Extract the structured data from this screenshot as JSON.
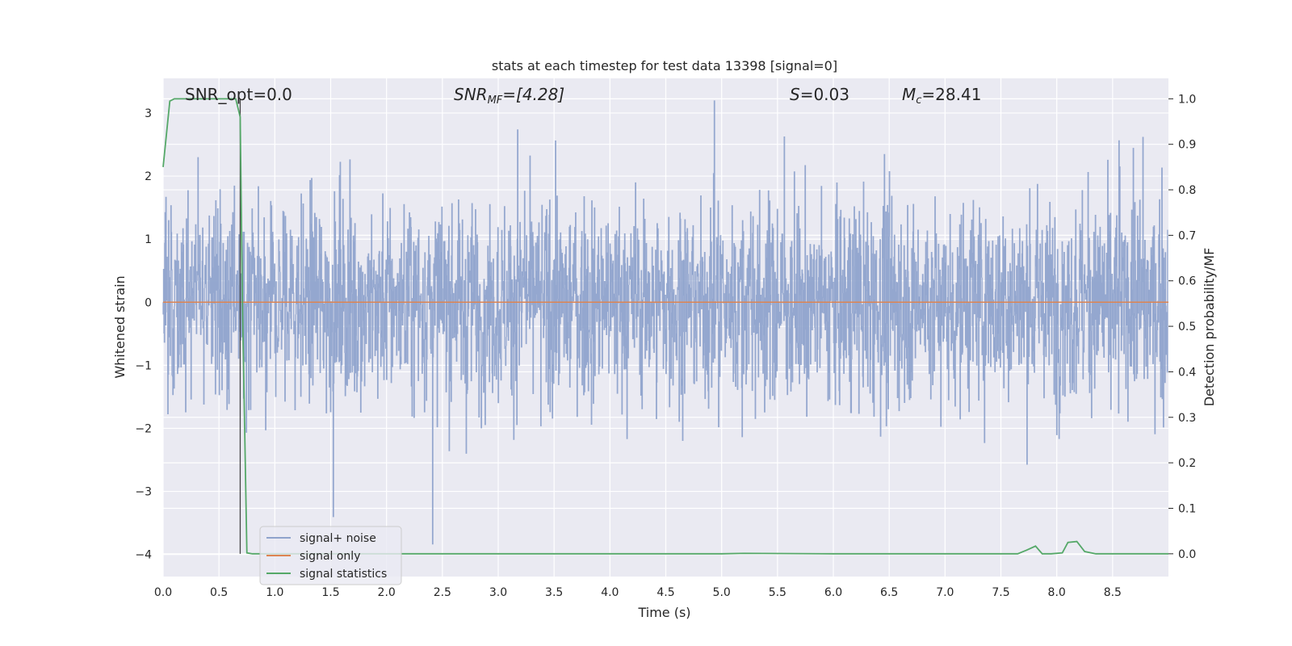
{
  "chart_data": {
    "type": "line",
    "title": "stats at each timestep for test data 13398 [signal=0]",
    "xlabel": "Time (s)",
    "ylabel": "Whitened strain",
    "y2label": "Detection probability/MF",
    "xlim": [
      0.0,
      9.0
    ],
    "ylim": [
      -4.35,
      3.55
    ],
    "y2lim": [
      -0.05,
      1.045
    ],
    "x_ticks": [
      "0.0",
      "0.5",
      "1.0",
      "1.5",
      "2.0",
      "2.5",
      "3.0",
      "3.5",
      "4.0",
      "4.5",
      "5.0",
      "5.5",
      "6.0",
      "6.5",
      "7.0",
      "7.5",
      "8.0",
      "8.5"
    ],
    "y_ticks": [
      "3",
      "2",
      "1",
      "0",
      "−1",
      "−2",
      "−3",
      "−4"
    ],
    "y2_ticks": [
      "1.0",
      "0.9",
      "0.8",
      "0.7",
      "0.6",
      "0.5",
      "0.4",
      "0.3",
      "0.2",
      "0.1",
      "0.0"
    ],
    "grid": true,
    "legend_position": "lower-left",
    "annotations": {
      "snr_opt": "SNR_opt=0.0",
      "snr_mf_main": "SNR",
      "snr_mf_sub": "MF",
      "snr_mf_value": "=[4.28]",
      "s_symbol": "S",
      "s_value": "=0.03",
      "mc_main": "M",
      "mc_sub": "c",
      "mc_value": "=28.41"
    },
    "vertical_marker_x": 0.69,
    "series": [
      {
        "name": "signal+ noise",
        "axis": "left",
        "color": "#8fa3cc",
        "description_range": [
          -4.0,
          3.2
        ]
      },
      {
        "name": "signal only",
        "axis": "left",
        "color": "#dd8452",
        "x": [
          0.0,
          9.0
        ],
        "y": [
          0.0,
          0.0
        ]
      },
      {
        "name": "signal statistics",
        "axis": "right",
        "color": "#55a868",
        "x": [
          0.0,
          0.06,
          0.1,
          0.2,
          0.3,
          0.4,
          0.5,
          0.6,
          0.65,
          0.69,
          0.71,
          0.75,
          0.8,
          1.0,
          2.0,
          3.0,
          4.0,
          5.0,
          5.2,
          6.0,
          7.0,
          7.65,
          7.73,
          7.81,
          7.87,
          7.95,
          8.05,
          8.1,
          8.18,
          8.25,
          8.35,
          8.5,
          9.0
        ],
        "y": [
          0.85,
          0.995,
          1.0,
          1.0,
          1.0,
          1.0,
          1.0,
          1.0,
          1.0,
          0.96,
          0.55,
          0.002,
          0.0,
          0.0,
          0.0,
          0.0,
          0.0,
          0.0,
          0.001,
          0.0,
          0.0,
          0.0,
          0.008,
          0.017,
          0.0,
          0.0,
          0.002,
          0.025,
          0.027,
          0.005,
          0.0,
          0.0,
          0.0
        ]
      }
    ]
  }
}
